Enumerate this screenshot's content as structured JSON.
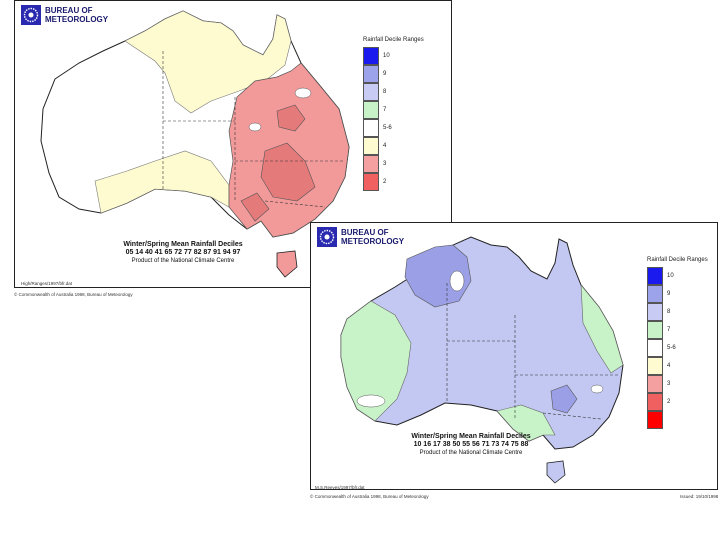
{
  "colors": {
    "red": "#ff0000",
    "dark_pink": "#f06060",
    "pink": "#f4a0a0",
    "cream": "#fffbd0",
    "white": "#ffffff",
    "light_green": "#c8f2c8",
    "lavender": "#c8ccf4",
    "periwinkle": "#9da3ea",
    "blue": "#1a1aee",
    "map_pink": "#f29a9a",
    "map_deep_pink": "#e57a7a",
    "map_lavender": "#c3c8f2",
    "map_periwinkle": "#9a9fe6"
  },
  "maps": [
    {
      "logo_line1": "BUREAU OF",
      "logo_line2": "METEOROLOGY",
      "legend_title": "Rainfall Decile Ranges",
      "legend": [
        {
          "label": "10",
          "color": "#1a1aee"
        },
        {
          "label": "9",
          "color": "#9da3ea"
        },
        {
          "label": "8",
          "color": "#c8ccf4"
        },
        {
          "label": "7",
          "color": "#c8f2c8"
        },
        {
          "label": "5-6",
          "color": "#ffffff"
        },
        {
          "label": "4",
          "color": "#fffbd0"
        },
        {
          "label": "3",
          "color": "#f4a0a0"
        },
        {
          "label": "2",
          "color": "#f06060"
        }
      ],
      "caption_title": "Winter/Spring Mean Rainfall Deciles",
      "caption_years": "05 14 40 41 65 72 77 82 87 91 94 97",
      "caption_credit": "Product of the National Climate Centre",
      "small_left": "High/Ranges/1997/bfr.dat",
      "copyright": "© Commonwealth of Australia 1998, Bureau of Meteorology"
    },
    {
      "logo_line1": "BUREAU OF",
      "logo_line2": "METEOROLOGY",
      "legend_title": "Rainfall Decile Ranges",
      "legend": [
        {
          "label": "10",
          "color": "#1a1aee"
        },
        {
          "label": "9",
          "color": "#9da3ea"
        },
        {
          "label": "8",
          "color": "#c8ccf4"
        },
        {
          "label": "7",
          "color": "#c8f2c8"
        },
        {
          "label": "5-6",
          "color": "#ffffff"
        },
        {
          "label": "4",
          "color": "#fffbd0"
        },
        {
          "label": "3",
          "color": "#f4a0a0"
        },
        {
          "label": "2",
          "color": "#f06060"
        },
        {
          "label": "",
          "color": "#ff0000"
        }
      ],
      "caption_title": "Winter/Spring Mean Rainfall Deciles",
      "caption_years": "10 16 17 38 50 55 56 71 73 74 75 88",
      "caption_credit": "Product of the National Climate Centre",
      "small_left": "M.S.Reeves/1997/bfr.dat",
      "copyright": "© Commonwealth of Australia 1998, Bureau of Meteorology",
      "small_right": "Issued: 19/10/1998"
    }
  ]
}
